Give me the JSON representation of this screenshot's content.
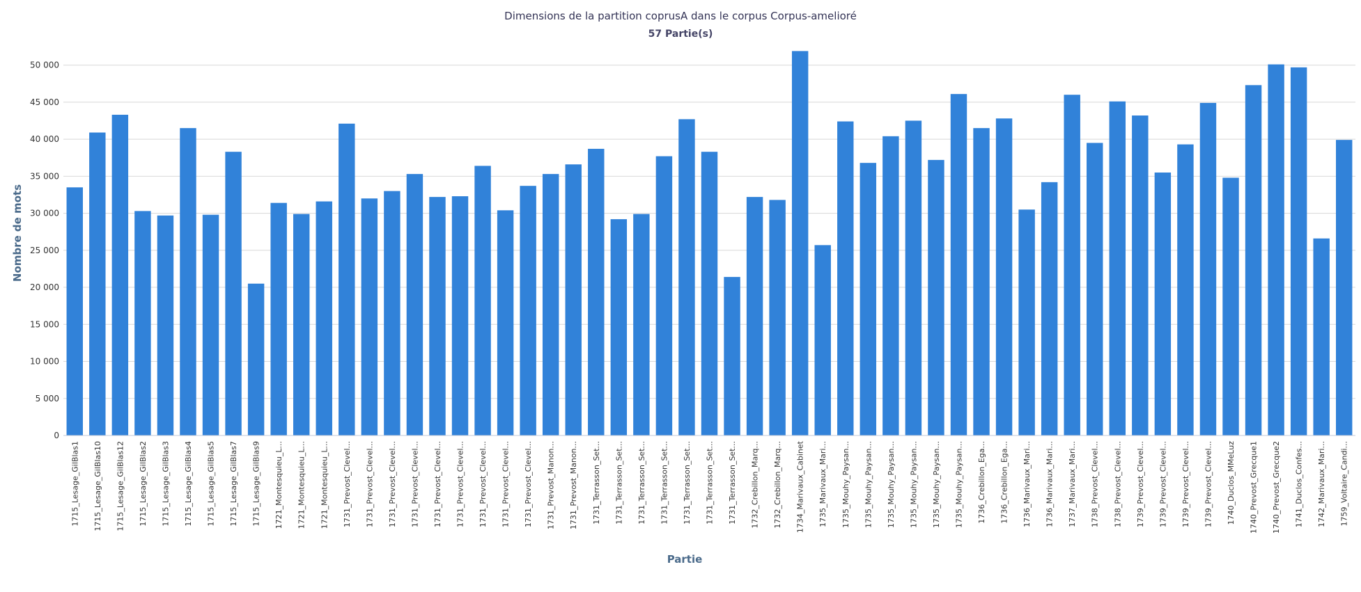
{
  "chart_data": {
    "type": "bar",
    "title": "Dimensions de la partition coprusA dans le corpus Corpus-amelioré",
    "subtitle": "57 Partie(s)",
    "xlabel": "Partie",
    "ylabel": "Nombre de mots",
    "ylim": [
      0,
      52500
    ],
    "yticks": [
      0,
      5000,
      10000,
      15000,
      20000,
      25000,
      30000,
      35000,
      40000,
      45000,
      50000
    ],
    "ytick_labels": [
      "0",
      "5 000",
      "10 000",
      "15 000",
      "20 000",
      "25 000",
      "30 000",
      "35 000",
      "40 000",
      "45 000",
      "50 000"
    ],
    "grid": true,
    "bar_color": "#3182d9",
    "categories": [
      "1715_Lesage_GilBlas1",
      "1715_Lesage_GilBlas10",
      "1715_Lesage_GilBlas12",
      "1715_Lesage_GilBlas2",
      "1715_Lesage_GilBlas3",
      "1715_Lesage_GilBlas4",
      "1715_Lesage_GilBlas5",
      "1715_Lesage_GilBlas7",
      "1715_Lesage_GilBlas9",
      "1721_Montesquieu_L...",
      "1721_Montesquieu_L...",
      "1721_Montesquieu_L...",
      "1731_Prevost_Clevel...",
      "1731_Prevost_Clevel...",
      "1731_Prevost_Clevel...",
      "1731_Prevost_Clevel...",
      "1731_Prevost_Clevel...",
      "1731_Prevost_Clevel...",
      "1731_Prevost_Clevel...",
      "1731_Prevost_Clevel...",
      "1731_Prevost_Clevel...",
      "1731_Prevost_Manon...",
      "1731_Prevost_Manon...",
      "1731_Terrasson_Set...",
      "1731_Terrasson_Set...",
      "1731_Terrasson_Set...",
      "1731_Terrasson_Set...",
      "1731_Terrasson_Set...",
      "1731_Terrasson_Set...",
      "1731_Terrasson_Set...",
      "1732_Crebillon_Marq...",
      "1732_Crebillon_Marq...",
      "1734_Marivaux_Cabinet",
      "1735_Marivaux_Mari...",
      "1735_Mouhy_Paysan...",
      "1735_Mouhy_Paysan...",
      "1735_Mouhy_Paysan...",
      "1735_Mouhy_Paysan...",
      "1735_Mouhy_Paysan...",
      "1735_Mouhy_Paysan...",
      "1736_Crebillon_Ega...",
      "1736_Crebillon_Ega...",
      "1736_Marivaux_Mari...",
      "1736_Marivaux_Mari...",
      "1737_Marivaux_Mari...",
      "1738_Prevost_Clevel...",
      "1738_Prevost_Clevel...",
      "1739_Prevost_Clevel...",
      "1739_Prevost_Clevel...",
      "1739_Prevost_Clevel...",
      "1739_Prevost_Clevel...",
      "1740_Duclos_MMeLuz",
      "1740_Prevost_Grecque1",
      "1740_Prevost_Grecque2",
      "1741_Duclos_Confes...",
      "1742_Marivaux_Mari...",
      "1759_Voltaire_Candi..."
    ],
    "values": [
      33500,
      40900,
      43300,
      30300,
      29700,
      41500,
      29800,
      38300,
      20500,
      31400,
      29900,
      31600,
      42100,
      32000,
      33000,
      35300,
      32200,
      32300,
      36400,
      30400,
      33700,
      35300,
      36600,
      38700,
      29200,
      29900,
      37700,
      42700,
      38300,
      21400,
      32200,
      31800,
      51900,
      25700,
      42400,
      36800,
      40400,
      42500,
      37200,
      46100,
      41500,
      42800,
      30500,
      34200,
      46000,
      39500,
      45100,
      43200,
      35500,
      39300,
      44900,
      34800,
      47300,
      50100,
      49700,
      26600,
      39900
    ]
  }
}
